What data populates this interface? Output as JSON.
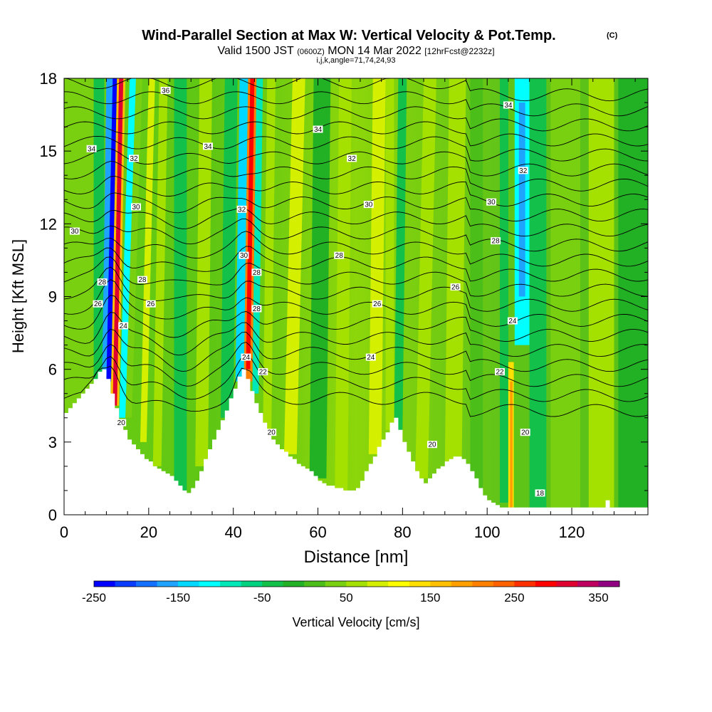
{
  "chart_data": {
    "type": "heatmap",
    "title": "Wind-Parallel Section at Max W: Vertical Velocity & Pot.Temp.",
    "title_mark": "(C)",
    "subtitle_prefix": "Valid 1500 JST",
    "subtitle_utc": "(0600Z)",
    "subtitle_date": "MON 14 Mar 2022",
    "subtitle_fcst": "[12hrFcst@2232z]",
    "subtitle2": "i,j,k,angle=71,74,24,93",
    "xlabel": "Distance [nm]",
    "ylabel": "Height [Kft MSL]",
    "xlim": [
      0,
      138
    ],
    "ylim": [
      0,
      18
    ],
    "x_ticks": [
      0,
      20,
      40,
      60,
      80,
      100,
      120
    ],
    "y_ticks": [
      0,
      3,
      6,
      9,
      12,
      15,
      18
    ],
    "colorbar": {
      "label": "Vertical Velocity [cm/s]",
      "tick_labels": [
        "-250",
        "-150",
        "-50",
        "50",
        "150",
        "250",
        "350"
      ],
      "min": -250,
      "max": 375,
      "step": 25,
      "colors": [
        "#0000ff",
        "#0a3dff",
        "#1470ff",
        "#1ea3ff",
        "#00d8ff",
        "#00ffff",
        "#00e8b8",
        "#00d280",
        "#12c04a",
        "#22b024",
        "#4cbe1a",
        "#78d010",
        "#a4e000",
        "#d4f000",
        "#ffff00",
        "#ffe000",
        "#ffc000",
        "#ffa000",
        "#ff8000",
        "#ff6000",
        "#ff3000",
        "#ff0000",
        "#e00030",
        "#c00060",
        "#900080"
      ]
    },
    "contour_labels": [
      {
        "v": "36",
        "x": 24,
        "y": 17.5
      },
      {
        "v": "34",
        "x": 6.5,
        "y": 15.1
      },
      {
        "v": "34",
        "x": 34,
        "y": 15.2
      },
      {
        "v": "34",
        "x": 60,
        "y": 15.9
      },
      {
        "v": "34",
        "x": 105,
        "y": 16.9
      },
      {
        "v": "32",
        "x": 16.5,
        "y": 14.7
      },
      {
        "v": "32",
        "x": 68,
        "y": 14.7
      },
      {
        "v": "32",
        "x": 108.5,
        "y": 14.2
      },
      {
        "v": "32",
        "x": 42,
        "y": 12.6
      },
      {
        "v": "30",
        "x": 2.5,
        "y": 11.7
      },
      {
        "v": "30",
        "x": 17,
        "y": 12.7
      },
      {
        "v": "30",
        "x": 72,
        "y": 12.8
      },
      {
        "v": "30",
        "x": 101,
        "y": 12.9
      },
      {
        "v": "30",
        "x": 42.5,
        "y": 10.7
      },
      {
        "v": "28",
        "x": 9,
        "y": 9.6
      },
      {
        "v": "28",
        "x": 18.5,
        "y": 9.7
      },
      {
        "v": "28",
        "x": 65,
        "y": 10.7
      },
      {
        "v": "28",
        "x": 102,
        "y": 11.3
      },
      {
        "v": "28",
        "x": 45.5,
        "y": 10.0
      },
      {
        "v": "28",
        "x": 45.5,
        "y": 8.5
      },
      {
        "v": "26",
        "x": 8,
        "y": 8.7
      },
      {
        "v": "26",
        "x": 20.5,
        "y": 8.7
      },
      {
        "v": "26",
        "x": 74,
        "y": 8.7
      },
      {
        "v": "26",
        "x": 92.5,
        "y": 9.4
      },
      {
        "v": "24",
        "x": 14,
        "y": 7.8
      },
      {
        "v": "24",
        "x": 43,
        "y": 6.5
      },
      {
        "v": "24",
        "x": 72.5,
        "y": 6.5
      },
      {
        "v": "24",
        "x": 106,
        "y": 8.0
      },
      {
        "v": "22",
        "x": 47,
        "y": 5.9
      },
      {
        "v": "22",
        "x": 103,
        "y": 5.9
      },
      {
        "v": "20",
        "x": 13.5,
        "y": 3.8
      },
      {
        "v": "20",
        "x": 49,
        "y": 3.4
      },
      {
        "v": "20",
        "x": 87,
        "y": 2.9
      },
      {
        "v": "20",
        "x": 109,
        "y": 3.4
      },
      {
        "v": "18",
        "x": 112.5,
        "y": 0.9
      }
    ]
  }
}
